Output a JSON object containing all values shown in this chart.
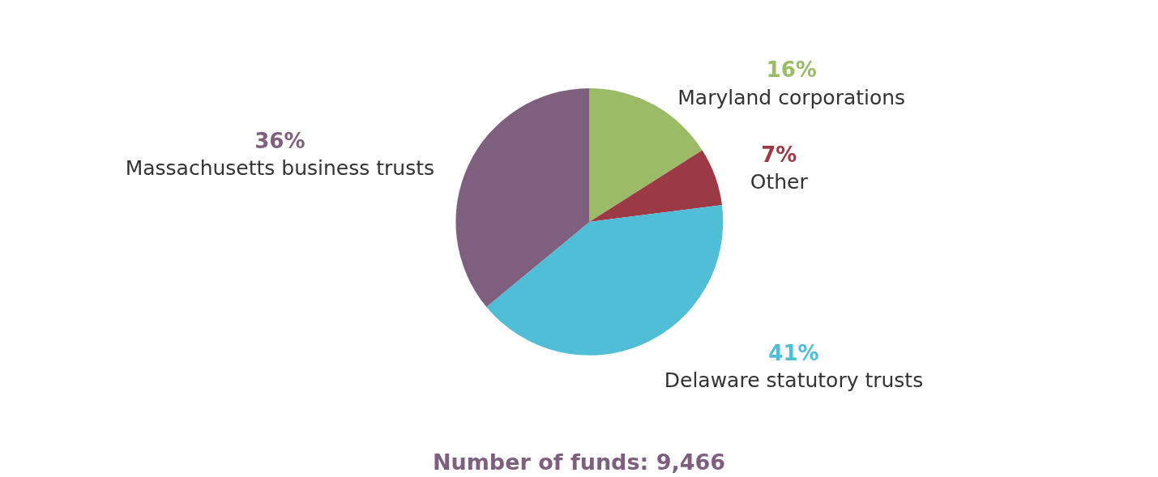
{
  "chart_data": {
    "type": "pie",
    "title": "Number of funds: 9,466",
    "categories": [
      "Maryland corporations",
      "Other",
      "Delaware statutory trusts",
      "Massachusetts business trusts"
    ],
    "values": [
      16,
      7,
      41,
      36
    ],
    "colors": [
      "#9bbb66",
      "#9b3a44",
      "#4fbed6",
      "#7f5f7e"
    ],
    "value_labels": [
      "16%",
      "7%",
      "41%",
      "36%"
    ],
    "legend": false
  }
}
